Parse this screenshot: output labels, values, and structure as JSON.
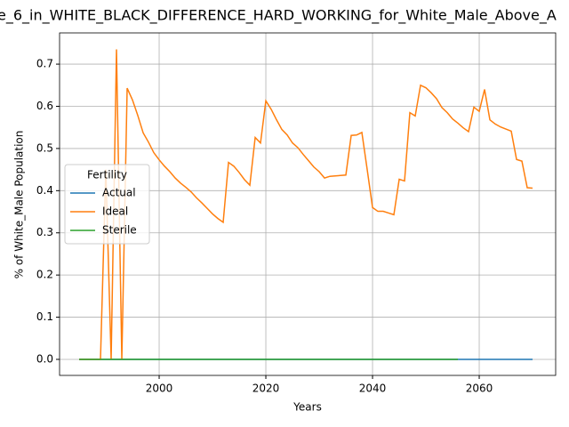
{
  "chart_data": {
    "type": "line",
    "title": "e_6_in_WHITE_BLACK_DIFFERENCE_HARD_WORKING_for_White_Male_Above_A",
    "xlabel": "Years",
    "ylabel": "% of White_Male Population",
    "x": [
      1985,
      1986,
      1987,
      1988,
      1989,
      1990,
      1991,
      1992,
      1993,
      1994,
      1995,
      1996,
      1997,
      1998,
      1999,
      2000,
      2001,
      2002,
      2003,
      2004,
      2005,
      2006,
      2007,
      2008,
      2009,
      2010,
      2011,
      2012,
      2013,
      2014,
      2015,
      2016,
      2017,
      2018,
      2019,
      2020,
      2021,
      2022,
      2023,
      2024,
      2025,
      2026,
      2027,
      2028,
      2029,
      2030,
      2031,
      2032,
      2033,
      2034,
      2035,
      2036,
      2037,
      2038,
      2039,
      2040,
      2041,
      2042,
      2043,
      2044,
      2045,
      2046,
      2047,
      2048,
      2049,
      2050,
      2051,
      2052,
      2053,
      2054,
      2055,
      2056,
      2057,
      2058,
      2059,
      2060,
      2061,
      2062,
      2063,
      2064,
      2065,
      2066,
      2067,
      2068,
      2069,
      2070
    ],
    "series": [
      {
        "name": "Actual",
        "color": "#1f77b4",
        "values": [
          0,
          0,
          0,
          0,
          0,
          0,
          0,
          0,
          0,
          0,
          0,
          0,
          0,
          0,
          0,
          0,
          0,
          0,
          0,
          0,
          0,
          0,
          0,
          0,
          0,
          0,
          0,
          0,
          0,
          0,
          0,
          0,
          0,
          0,
          0,
          0,
          0,
          0,
          0,
          0,
          0,
          0,
          0,
          0,
          0,
          0,
          0,
          0,
          0,
          0,
          0,
          0,
          0,
          0,
          0,
          0,
          0,
          0,
          0,
          0,
          0,
          0,
          0,
          0,
          0,
          0,
          0,
          0,
          0,
          0,
          0,
          0,
          0,
          0,
          0,
          0,
          0,
          0,
          0,
          0,
          0,
          0,
          0,
          0,
          0,
          0
        ]
      },
      {
        "name": "Ideal",
        "color": "#ff7f0e",
        "values": [
          0,
          0,
          0,
          0,
          0,
          0.45,
          0,
          0.735,
          0,
          0.643,
          0.615,
          0.578,
          0.537,
          0.515,
          0.49,
          0.473,
          0.458,
          0.445,
          0.43,
          0.418,
          0.408,
          0.397,
          0.383,
          0.371,
          0.358,
          0.345,
          0.334,
          0.325,
          0.467,
          0.458,
          0.443,
          0.426,
          0.413,
          0.526,
          0.513,
          0.613,
          0.593,
          0.568,
          0.545,
          0.532,
          0.513,
          0.502,
          0.486,
          0.471,
          0.456,
          0.445,
          0.43,
          0.434,
          0.435,
          0.436,
          0.437,
          0.531,
          0.532,
          0.538,
          0.45,
          0.36,
          0.351,
          0.351,
          0.347,
          0.343,
          0.427,
          0.423,
          0.585,
          0.577,
          0.65,
          0.644,
          0.632,
          0.618,
          0.597,
          0.585,
          0.57,
          0.56,
          0.549,
          0.54,
          0.598,
          0.588,
          0.64,
          0.568,
          0.558,
          0.551,
          0.546,
          0.541,
          0.474,
          0.47,
          0.407,
          0.406
        ]
      },
      {
        "name": "Sterile",
        "color": "#2ca02c",
        "values": [
          0,
          0,
          0,
          0,
          0,
          0,
          0,
          0,
          0,
          0,
          0,
          0,
          0,
          0,
          0,
          0,
          0,
          0,
          0,
          0,
          0,
          0,
          0,
          0,
          0,
          0,
          0,
          0,
          0,
          0,
          0,
          0,
          0,
          0,
          0,
          0,
          0,
          0,
          0,
          0,
          0,
          0,
          0,
          0,
          0,
          0,
          0,
          0,
          0,
          0,
          0,
          0,
          0,
          0,
          0,
          0,
          0,
          0,
          0,
          0,
          0,
          0,
          0,
          0,
          0,
          0,
          0,
          0,
          0,
          0,
          0,
          0,
          null,
          null,
          null,
          null,
          null,
          null,
          null,
          null,
          null,
          null,
          null,
          null,
          null,
          null
        ]
      }
    ],
    "legend_title": "Fertility",
    "legend": "center left",
    "grid": true,
    "xlim": [
      1981.33,
      2074.33
    ],
    "xticks": [
      2000,
      2020,
      2040,
      2060
    ],
    "ylim": [
      -0.038,
      0.774
    ],
    "yticks": [
      {
        "value": 0,
        "label": "0.0"
      },
      0.1,
      0.2,
      0.3,
      0.4,
      0.5,
      0.6,
      0.7
    ]
  }
}
